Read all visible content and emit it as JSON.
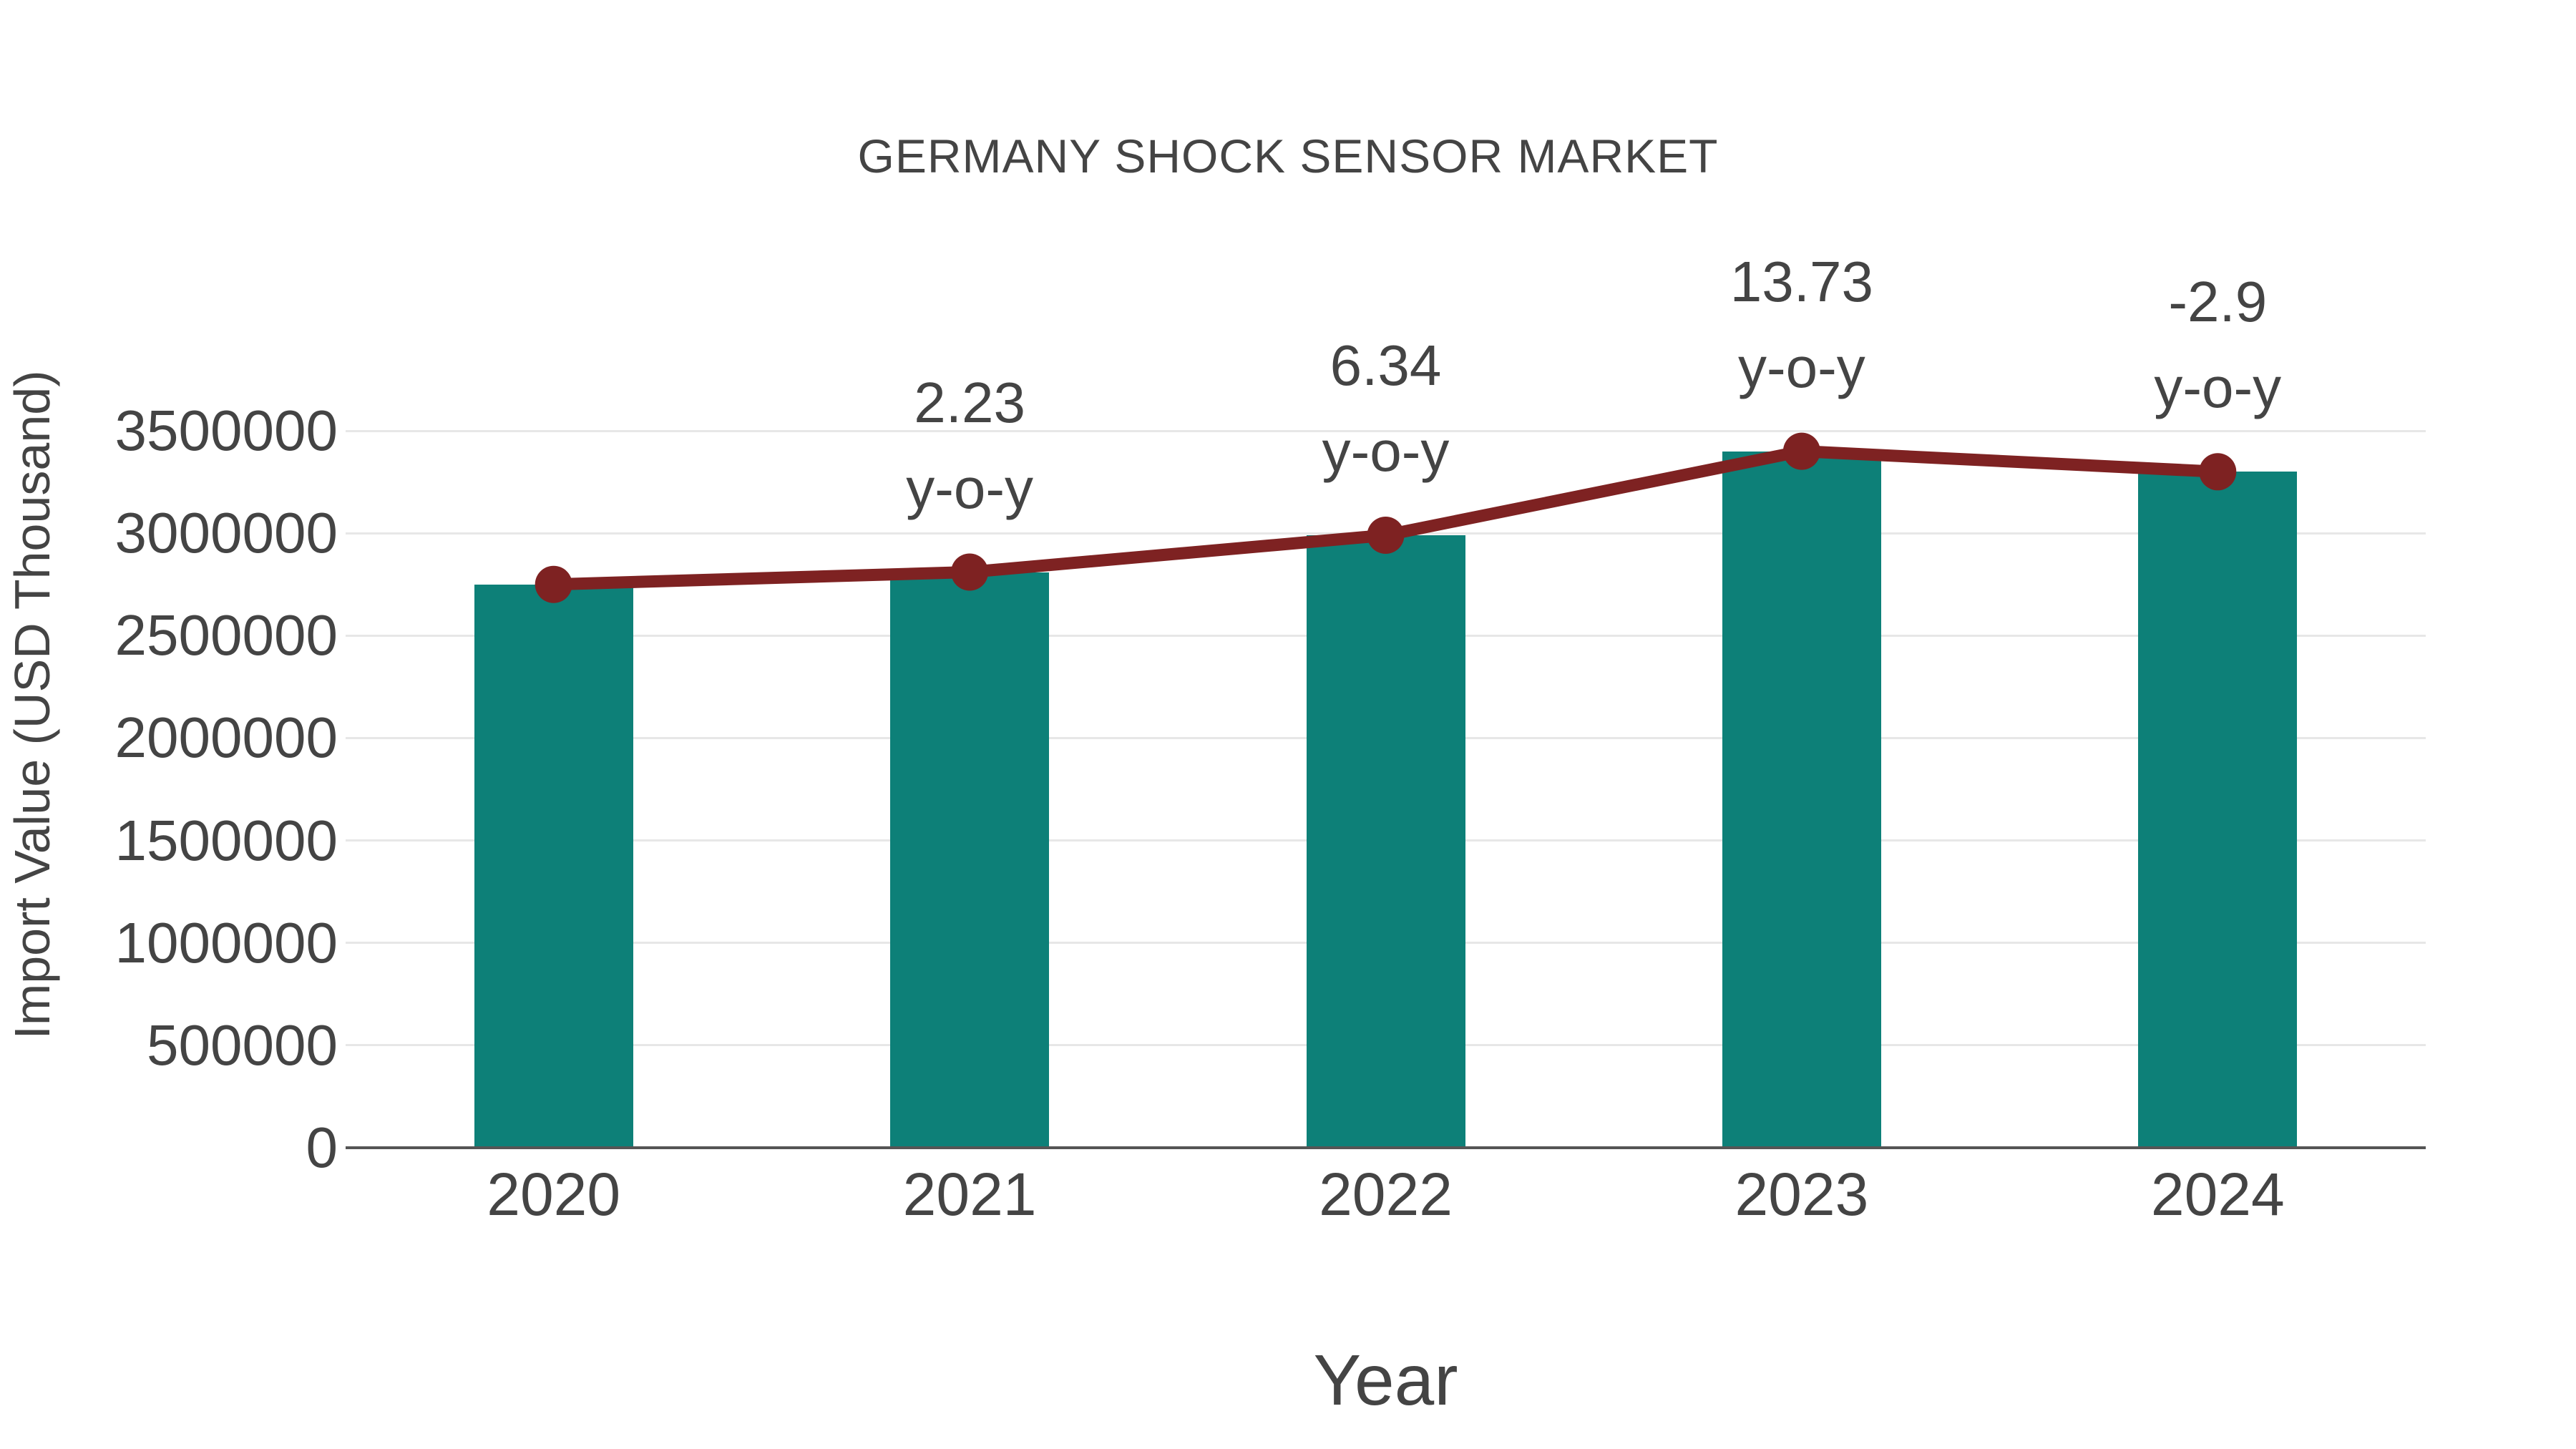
{
  "chart_data": {
    "type": "bar",
    "title": "GERMANY SHOCK SENSOR MARKET",
    "xlabel": "Year",
    "ylabel": "Import Value (USD Thousand)",
    "categories": [
      "2020",
      "2021",
      "2022",
      "2023",
      "2024"
    ],
    "series": [
      {
        "name": "import-value-bars",
        "type": "bar",
        "values": [
          2750000,
          2810000,
          2990000,
          3400000,
          3300000
        ]
      },
      {
        "name": "import-value-trend-line",
        "type": "line",
        "values": [
          2750000,
          2810000,
          2990000,
          3400000,
          3300000
        ]
      }
    ],
    "annotations": [
      {
        "category": "2021",
        "lines": [
          "2.23",
          "y-o-y"
        ]
      },
      {
        "category": "2022",
        "lines": [
          "6.34",
          "y-o-y"
        ]
      },
      {
        "category": "2023",
        "lines": [
          "13.73",
          "y-o-y"
        ]
      },
      {
        "category": "2024",
        "lines": [
          "-2.9",
          "y-o-y"
        ]
      }
    ],
    "ylim": [
      0,
      3500000
    ],
    "yticks": [
      0,
      500000,
      1000000,
      1500000,
      2000000,
      2500000,
      3000000,
      3500000
    ],
    "grid": true,
    "legend_position": "none",
    "colors": {
      "bar": "#0d8078",
      "line": "#7e2222",
      "marker": "#7e2222",
      "gridline": "#e7e7e7",
      "axis_line": "#555555",
      "text": "#444444"
    }
  }
}
